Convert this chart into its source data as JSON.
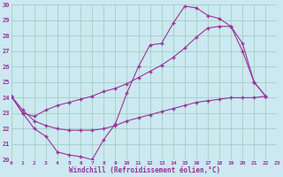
{
  "xlabel": "Windchill (Refroidissement éolien,°C)",
  "bg_color": "#cce8f0",
  "line_color": "#993399",
  "grid_color": "#99ccbb",
  "ylim": [
    20,
    30
  ],
  "xlim": [
    0,
    23
  ],
  "yticks": [
    20,
    21,
    22,
    23,
    24,
    25,
    26,
    27,
    28,
    29,
    30
  ],
  "xticks": [
    0,
    1,
    2,
    3,
    4,
    5,
    6,
    7,
    8,
    9,
    10,
    11,
    12,
    13,
    14,
    15,
    16,
    17,
    18,
    19,
    20,
    21,
    22,
    23
  ],
  "line1_x": [
    0,
    1,
    2,
    3,
    4,
    5,
    6,
    7,
    8,
    9,
    10,
    11,
    12,
    13,
    14,
    15,
    16,
    17,
    18,
    19,
    20,
    21,
    22
  ],
  "line1_y": [
    24.1,
    23.0,
    22.0,
    21.5,
    20.5,
    20.3,
    20.2,
    20.0,
    21.3,
    22.3,
    24.3,
    26.0,
    27.4,
    27.5,
    28.8,
    29.9,
    29.8,
    29.3,
    29.1,
    28.6,
    27.0,
    25.0,
    24.1
  ],
  "line2_x": [
    0,
    1,
    2,
    3,
    4,
    5,
    6,
    7,
    8,
    9,
    10,
    11,
    12,
    13,
    14,
    15,
    16,
    17,
    18,
    19,
    20,
    21,
    22
  ],
  "line2_y": [
    24.1,
    23.2,
    22.5,
    22.2,
    22.0,
    21.9,
    21.9,
    21.9,
    22.0,
    22.2,
    22.5,
    22.7,
    22.9,
    23.1,
    23.3,
    23.5,
    23.7,
    23.8,
    23.9,
    24.0,
    24.0,
    24.0,
    24.1
  ],
  "line3_x": [
    0,
    1,
    2,
    3,
    4,
    5,
    6,
    7,
    8,
    9,
    10,
    11,
    12,
    13,
    14,
    15,
    16,
    17,
    18,
    19,
    20,
    21,
    22
  ],
  "line3_y": [
    24.1,
    23.0,
    22.8,
    23.2,
    23.5,
    23.7,
    23.9,
    24.1,
    24.4,
    24.6,
    24.9,
    25.3,
    25.7,
    26.1,
    26.6,
    27.2,
    27.9,
    28.5,
    28.6,
    28.6,
    27.5,
    25.0,
    24.1
  ]
}
